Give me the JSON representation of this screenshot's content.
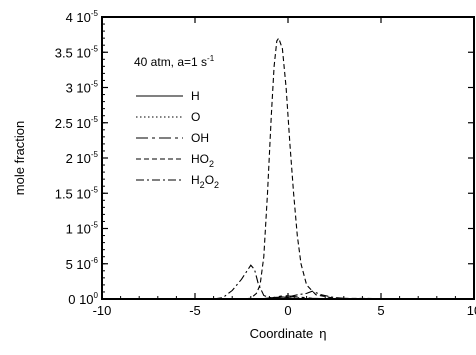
{
  "chart_data": {
    "type": "line",
    "xlabel": "Coordinate",
    "xlabel_symbol": "η",
    "ylabel": "mole fraction",
    "xlim": [
      -10,
      10
    ],
    "ylim": [
      0,
      4e-05
    ],
    "x_ticks": [
      {
        "value": -10,
        "label": "-10"
      },
      {
        "value": -5,
        "label": "-5"
      },
      {
        "value": 0,
        "label": "0"
      },
      {
        "value": 5,
        "label": "5"
      },
      {
        "value": 10,
        "label": "10"
      }
    ],
    "y_ticks": [
      {
        "value": 0,
        "mant": "0 10",
        "exp": "0"
      },
      {
        "value": 5e-06,
        "mant": "5 10",
        "exp": "-6"
      },
      {
        "value": 1e-05,
        "mant": "1 10",
        "exp": "-5"
      },
      {
        "value": 1.5e-05,
        "mant": "1.5 10",
        "exp": "-5"
      },
      {
        "value": 2e-05,
        "mant": "2 10",
        "exp": "-5"
      },
      {
        "value": 2.5e-05,
        "mant": "2.5 10",
        "exp": "-5"
      },
      {
        "value": 3e-05,
        "mant": "3 10",
        "exp": "-5"
      },
      {
        "value": 3.5e-05,
        "mant": "3.5 10",
        "exp": "-5"
      },
      {
        "value": 4e-05,
        "mant": "4 10",
        "exp": "-5"
      }
    ],
    "condition": {
      "text": "40 atm, a=1 s",
      "exp": "-1"
    },
    "grid": false,
    "legend_position": "top-left",
    "series": [
      {
        "name": "H",
        "label_parts": [
          {
            "t": "H"
          }
        ],
        "dash": "none",
        "x": [
          -10,
          -3,
          -1.5,
          -0.8,
          -0.3,
          0.3,
          1,
          2,
          10
        ],
        "y": [
          0,
          0,
          0,
          1e-07,
          3e-07,
          1e-07,
          0,
          0,
          0
        ]
      },
      {
        "name": "O",
        "label_parts": [
          {
            "t": "O"
          }
        ],
        "dash": "1.5,2.5",
        "x": [
          -10,
          -3,
          -1,
          -0.5,
          0,
          0.5,
          1,
          3,
          10
        ],
        "y": [
          0,
          0,
          0,
          2e-07,
          4e-07,
          2e-07,
          0,
          0,
          0
        ]
      },
      {
        "name": "OH",
        "label_parts": [
          {
            "t": "OH"
          }
        ],
        "dash": "12,4,3,4",
        "x": [
          -10,
          -3,
          -1.5,
          -0.8,
          -0.2,
          0.5,
          1.3,
          2.5,
          10
        ],
        "y": [
          0,
          0,
          0,
          2e-07,
          5e-07,
          3e-07,
          1e-07,
          0,
          0
        ]
      },
      {
        "name": "HO2",
        "label_parts": [
          {
            "t": "HO"
          },
          {
            "t": "2",
            "sub": true
          }
        ],
        "dash": "5,3",
        "x": [
          -10,
          -2.5,
          -2,
          -1.7,
          -1.5,
          -1.3,
          -1.1,
          -0.9,
          -0.75,
          -0.6,
          -0.5,
          -0.3,
          -0.1,
          0.1,
          0.3,
          0.5,
          0.7,
          1,
          1.5,
          2.5,
          10
        ],
        "y": [
          0,
          0,
          1e-07,
          8e-07,
          2e-06,
          6e-06,
          1.5e-05,
          2.6e-05,
          3.3e-05,
          3.66e-05,
          3.7e-05,
          3.55e-05,
          3e-05,
          2.2e-05,
          1.5e-05,
          9e-06,
          5e-06,
          2e-06,
          6e-07,
          1e-07,
          0
        ]
      },
      {
        "name": "H2O2",
        "label_parts": [
          {
            "t": "H"
          },
          {
            "t": "2",
            "sub": true
          },
          {
            "t": "O"
          },
          {
            "t": "2",
            "sub": true
          }
        ],
        "dash": "8,3,2,3",
        "x": [
          -10,
          -4,
          -3.5,
          -3,
          -2.5,
          -2.2,
          -2.0,
          -1.8,
          -1.6,
          -1.3,
          -1,
          0,
          0.5,
          1,
          1.3,
          1.8,
          2.5,
          3.5,
          10
        ],
        "y": [
          0,
          0,
          2e-07,
          1.2e-06,
          2.8e-06,
          4e-06,
          4.8e-06,
          4.2e-06,
          2.2e-06,
          5e-07,
          2e-07,
          3e-07,
          6e-07,
          8e-07,
          1.1e-06,
          6e-07,
          2e-07,
          0,
          0
        ]
      }
    ]
  }
}
